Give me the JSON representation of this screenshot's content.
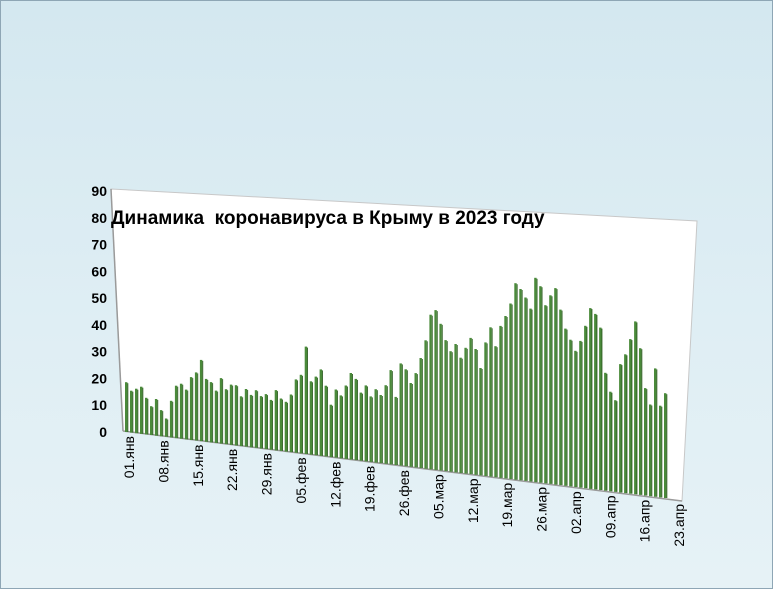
{
  "chart_data": {
    "type": "bar",
    "title": "Динамика  коронавируса в Крыму в 2023 году",
    "ylim": [
      0,
      90
    ],
    "y_ticks": [
      "0",
      "10",
      "20",
      "30",
      "40",
      "50",
      "60",
      "70",
      "80",
      "90"
    ],
    "x_tick_labels": [
      "01.янв",
      "08.янв",
      "15.янв",
      "22.янв",
      "29.янв",
      "05.фев",
      "12.фев",
      "19.фев",
      "26.фев",
      "05.мар",
      "12.мар",
      "19.мар",
      "26.мар",
      "02.апр",
      "09.апр",
      "16.апр",
      "23.апр"
    ],
    "series": [
      {
        "values": [
          19,
          16,
          17,
          18,
          14,
          11,
          14,
          10,
          7,
          14,
          20,
          21,
          19,
          24,
          26,
          31,
          24,
          23,
          20,
          25,
          21,
          23,
          23,
          19,
          22,
          20,
          22,
          20,
          21,
          19,
          23,
          20,
          19,
          22,
          28,
          30,
          41,
          28,
          30,
          33,
          27,
          20,
          26,
          24,
          28,
          33,
          31,
          26,
          29,
          25,
          28,
          26,
          30,
          36,
          26,
          39,
          37,
          32,
          36,
          42,
          49,
          59,
          61,
          56,
          50,
          46,
          49,
          44,
          48,
          52,
          48,
          41,
          51,
          57,
          50,
          58,
          62,
          67,
          75,
          73,
          70,
          66,
          78,
          75,
          68,
          72,
          75,
          67,
          60,
          56,
          52,
          56,
          62,
          69,
          67,
          62,
          45,
          38,
          35,
          49,
          53,
          59,
          66,
          56,
          41,
          35,
          49,
          35,
          40
        ]
      }
    ],
    "colors": {
      "bar": "#4a8a3a",
      "bar_shade": "#2e5e22",
      "plot_face": "#ffffff",
      "axis": "#9a9a9a"
    },
    "grid": false,
    "legend": "none"
  }
}
